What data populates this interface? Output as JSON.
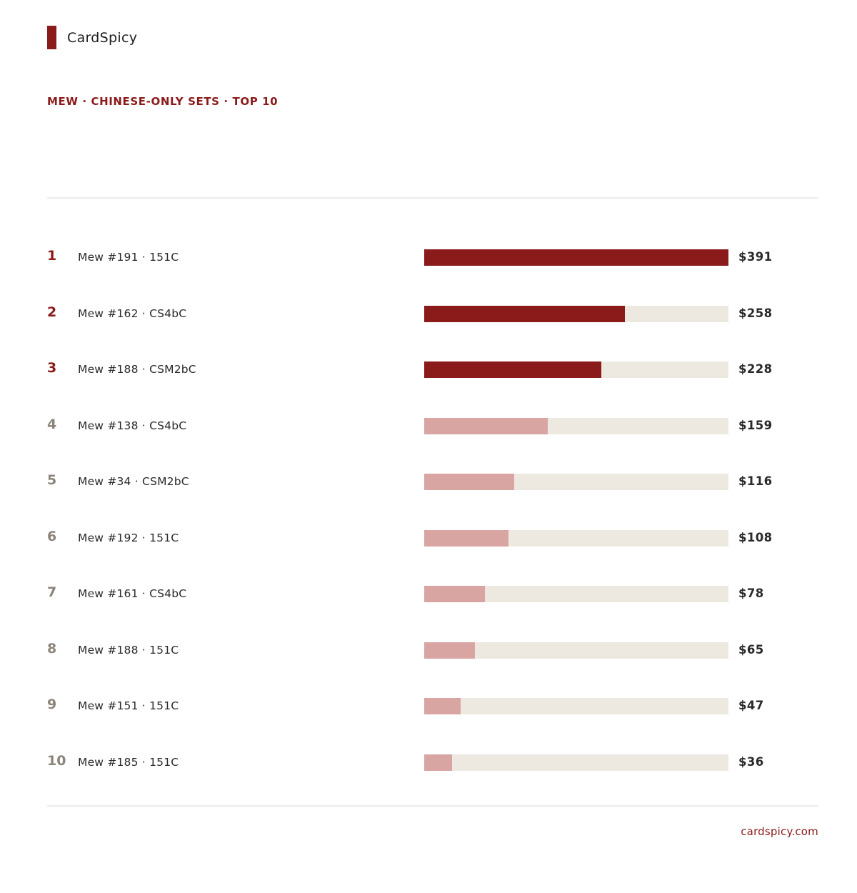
{
  "brand": {
    "name": "CardSpicy",
    "url": "cardspicy.com"
  },
  "subtitle": "MEW · CHINESE-ONLY SETS · TOP 10",
  "colors": {
    "accent": "#8b1a1a",
    "muted_bar": "#d8a5a3",
    "track": "#ede9e1"
  },
  "chart_data": {
    "type": "bar",
    "orientation": "horizontal",
    "title": "",
    "xlabel": "",
    "ylabel": "",
    "xlim": [
      0,
      391
    ],
    "highlight_top": 3,
    "categories": [
      "Mew #191 · 151C",
      "Mew #162 · CS4bC",
      "Mew #188 · CSM2bC",
      "Mew #138 · CS4bC",
      "Mew #34 · CSM2bC",
      "Mew #192 · 151C",
      "Mew #161 · CS4bC",
      "Mew #188 · 151C",
      "Mew #151 · 151C",
      "Mew #185 · 151C"
    ],
    "ranks": [
      "1",
      "2",
      "3",
      "4",
      "5",
      "6",
      "7",
      "8",
      "9",
      "10"
    ],
    "values": [
      391,
      258,
      228,
      159,
      116,
      108,
      78,
      65,
      47,
      36
    ],
    "value_labels": [
      "$391",
      "$258",
      "$228",
      "$159",
      "$116",
      "$108",
      "$78",
      "$65",
      "$47",
      "$36"
    ]
  }
}
